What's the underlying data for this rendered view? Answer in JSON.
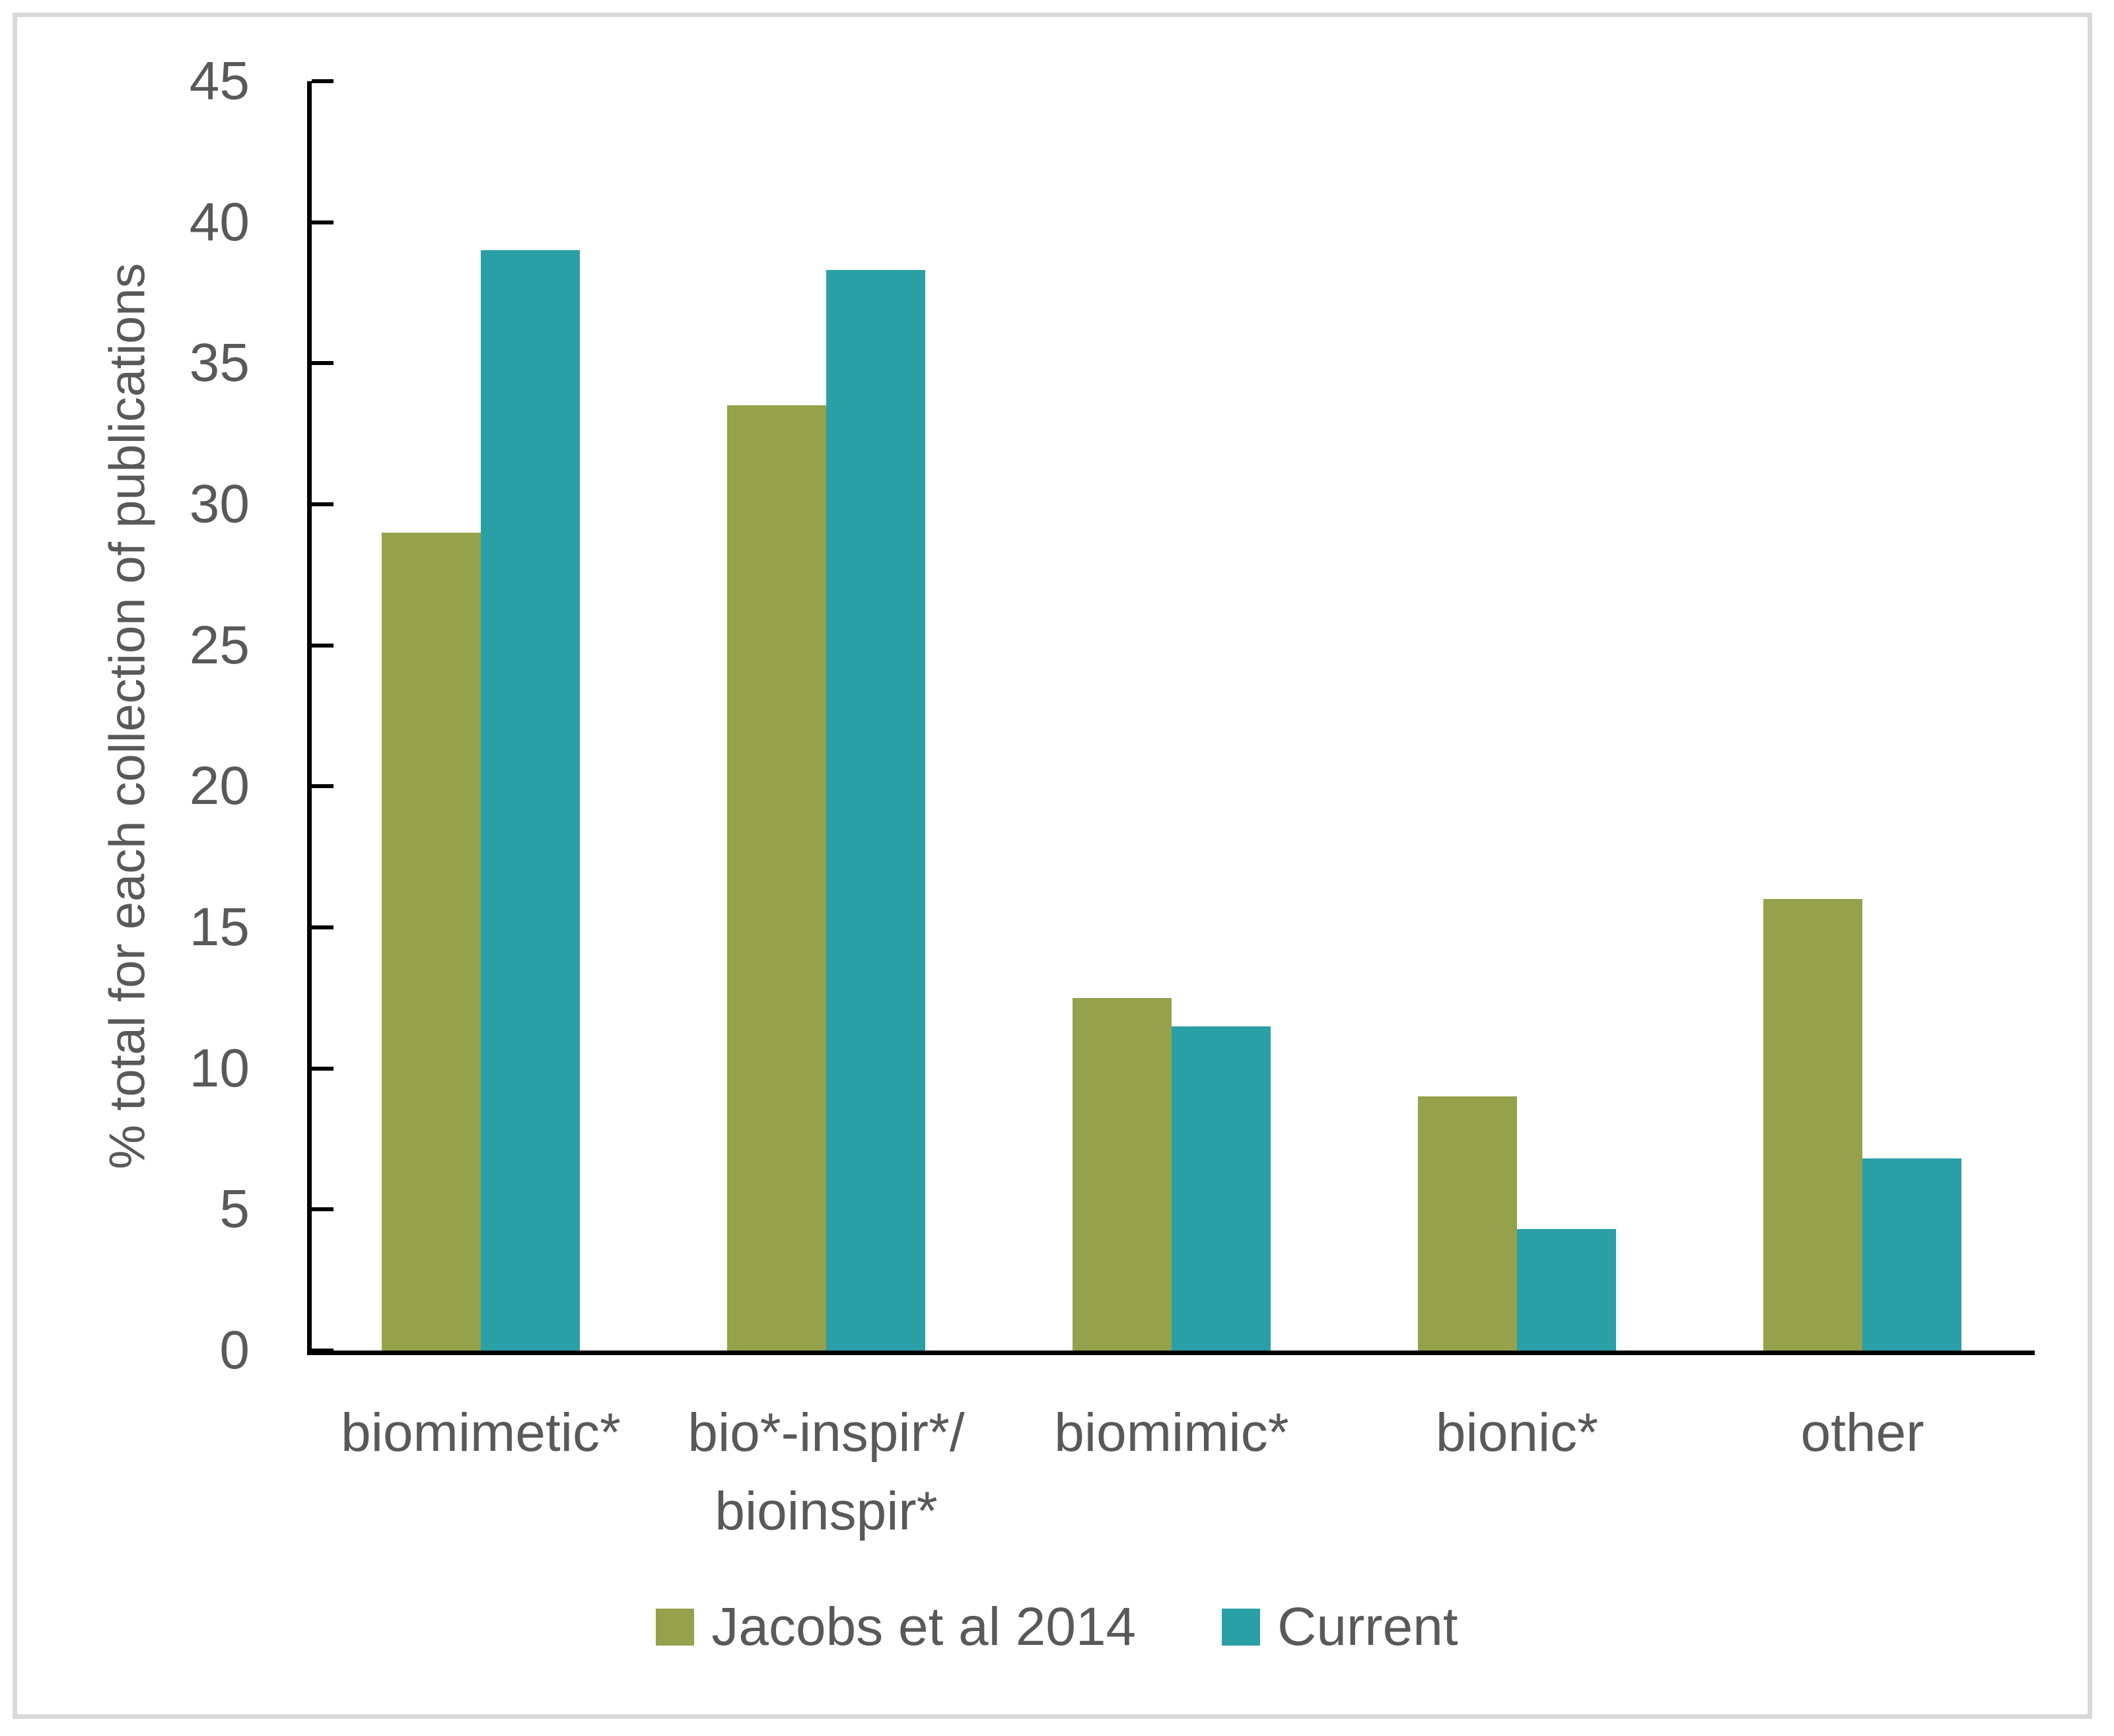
{
  "chart_data": {
    "type": "bar",
    "categories": [
      "biomimetic*",
      "bio*-inspir*/\nbioinspir*",
      "biomimic*",
      "bionic*",
      "other"
    ],
    "series": [
      {
        "name": "Jacobs et al 2014",
        "color": "#95A14B",
        "values": [
          29,
          33.5,
          12.5,
          9,
          16
        ]
      },
      {
        "name": "Current",
        "color": "#2AA0A6",
        "values": [
          39,
          38.3,
          11.5,
          4.3,
          6.8
        ]
      }
    ],
    "title": "",
    "xlabel": "",
    "ylabel": "% total for each collection of publications",
    "ylim": [
      0,
      45
    ],
    "ytick_step": 5,
    "yticks": [
      0,
      5,
      10,
      15,
      20,
      25,
      30,
      35,
      40,
      45
    ],
    "grid": false,
    "legend_position": "bottom"
  },
  "colors": {
    "axis": "#000000",
    "text": "#595959",
    "frame": "#D9D9D9",
    "background": "#FFFFFF"
  }
}
